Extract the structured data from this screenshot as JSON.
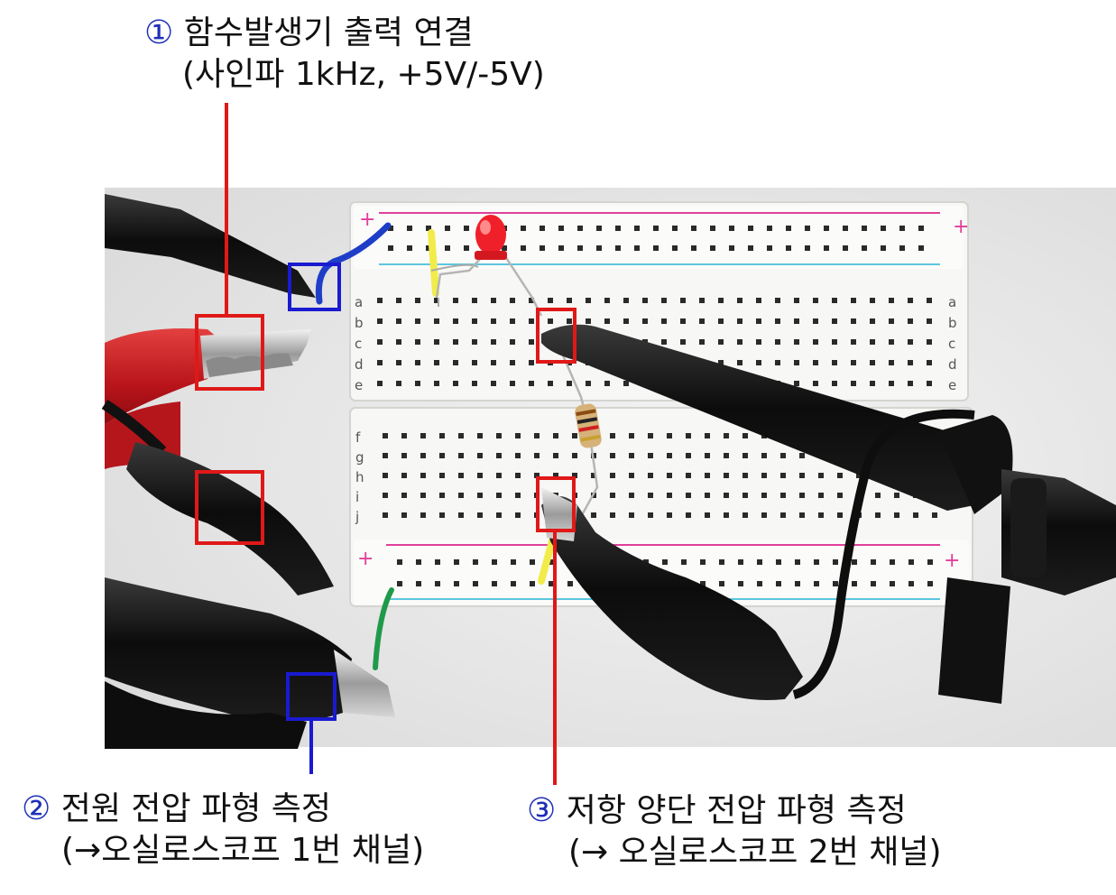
{
  "annotations": [
    {
      "number": "①",
      "line1": "함수발생기 출력 연결",
      "line2": "(사인파 1kHz, +5V/-5V)"
    },
    {
      "number": "②",
      "line1": "전원 전압 파형 측정",
      "line2": "(→오실로스코프 1번 채널)"
    },
    {
      "number": "③",
      "line1": "저항 양단 전압 파형 측정",
      "line2": "(→ 오실로스코프 2번 채널)"
    }
  ],
  "breadboard": {
    "rail_plus": "+",
    "rail_minus": "-",
    "row_letters_top": [
      "a",
      "b",
      "c",
      "d",
      "e"
    ],
    "row_letters_bottom": [
      "f",
      "g",
      "h",
      "i",
      "j"
    ]
  },
  "colors": {
    "marker_red": "#e01818",
    "marker_blue": "#1a1ad0",
    "number_blue": "#1f2fb8",
    "rail_pink": "#e0409a",
    "rail_cyan": "#5cc6e0"
  }
}
